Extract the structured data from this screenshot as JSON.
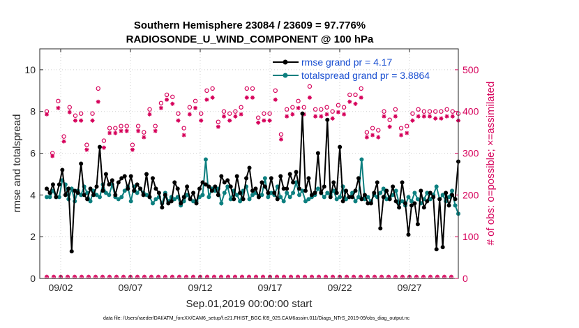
{
  "chart_data": {
    "type": "line",
    "title": "Southern Hemisphere 23084 / 23609 = 97.776%",
    "subtitle": "RADIOSONDE_U_WIND_COMPONENT @ 100 hPa",
    "xlabel": "Sep.01,2019 00:00:00 start",
    "ylabel": "rmse and totalspread",
    "ylabel_right": "# of obs: o=possible; ×=assimilated",
    "footnote": "data file: /Users/raeder/DAI/ATM_forcXX/CAM6_setup/f.e21.FHIST_BGC.f09_025.CAM6assim.011/Diags_NTrS_2019-09/obs_diag_output.nc",
    "xlim": [
      0.5,
      30.5
    ],
    "ylim": [
      0,
      11
    ],
    "ylim_right": [
      0,
      550
    ],
    "x_ticks": [
      2,
      7,
      12,
      17,
      22,
      27
    ],
    "x_tick_labels": [
      "09/02",
      "09/07",
      "09/12",
      "09/17",
      "09/22",
      "09/27"
    ],
    "y_ticks": [
      0,
      2,
      4,
      6,
      8,
      10
    ],
    "y_tick_labels": [
      "0",
      "2",
      "4",
      "6",
      "8",
      "10"
    ],
    "y_ticks_right": [
      0,
      100,
      200,
      300,
      400,
      500
    ],
    "y_tick_labels_right": [
      "0",
      "100",
      "200",
      "300",
      "400",
      "500"
    ],
    "legend_position": "top-right",
    "colors": {
      "rmse": "#000000",
      "spread": "#0c7f7f",
      "obs": "#d6005a",
      "legend_text": "#1a4fd1"
    },
    "series": [
      {
        "name": "rmse grand pr = 4.17",
        "color": "#000000",
        "values": [
          4.3,
          4.1,
          4.5,
          3.9,
          4.5,
          5.2,
          4.0,
          4.3,
          1.3,
          4.2,
          4.1,
          5.5,
          4.0,
          3.8,
          4.3,
          4.0,
          4.4,
          6.3,
          4.2,
          5.0,
          4.5,
          4.7,
          4.0,
          4.6,
          4.8,
          4.9,
          4.3,
          4.9,
          4.2,
          4.5,
          4.3,
          4.0,
          5.0,
          3.9,
          4.8,
          4.3,
          4.1,
          3.4,
          4.0,
          3.6,
          3.7,
          4.6,
          4.3,
          3.6,
          3.9,
          4.4,
          3.8,
          4.1,
          3.6,
          4.3,
          4.6,
          4.5,
          4.4,
          4.2,
          4.4,
          4.0,
          4.9,
          4.6,
          4.7,
          4.4,
          3.8,
          4.9,
          4.1,
          3.8,
          4.8,
          5.3,
          4.2,
          4.3,
          3.9,
          4.6,
          4.4,
          4.1,
          4.8,
          4.1,
          3.8,
          4.9,
          4.3,
          4.3,
          5.0,
          4.6,
          5.1,
          4.3,
          7.9,
          4.2,
          4.8,
          4.0,
          4.1,
          6.0,
          4.1,
          4.4,
          7.6,
          3.9,
          4.6,
          4.1,
          6.3,
          3.7,
          4.2,
          3.9,
          3.9,
          4.2,
          4.8,
          3.8,
          4.0,
          3.6,
          3.6,
          4.1,
          4.6,
          2.4,
          3.9,
          4.2,
          3.8,
          4.4,
          3.7,
          3.4,
          4.6,
          3.6,
          2.1,
          3.5,
          3.6,
          2.6,
          4.2,
          3.4,
          3.7,
          4.1,
          3.9,
          1.4,
          3.8,
          1.5,
          4.1,
          3.5,
          4.0,
          3.8,
          5.6
        ],
        "x_start": 1.0,
        "x_step": 0.225
      },
      {
        "name": "totalspread grand pr = 3.8864",
        "color": "#0c7f7f",
        "values": [
          3.9,
          3.9,
          4.2,
          3.9,
          3.9,
          4.7,
          4.5,
          3.8,
          4.3,
          3.7,
          4.2,
          4.0,
          4.4,
          4.1,
          3.7,
          4.2,
          4.0,
          3.9,
          4.5,
          4.1,
          4.0,
          4.5,
          3.9,
          3.8,
          3.9,
          4.2,
          4.4,
          3.7,
          4.4,
          4.1,
          4.3,
          4.1,
          4.0,
          3.9,
          3.6,
          3.8,
          3.9,
          3.6,
          4.1,
          3.7,
          3.9,
          3.8,
          3.9,
          3.5,
          3.7,
          4.0,
          3.8,
          3.7,
          3.7,
          3.9,
          4.0,
          5.7,
          3.9,
          4.3,
          4.2,
          4.3,
          3.6,
          4.1,
          4.4,
          3.8,
          4.2,
          4.0,
          3.7,
          4.2,
          4.4,
          3.8,
          4.0,
          4.1,
          3.9,
          4.0,
          4.8,
          3.9,
          4.1,
          4.0,
          4.4,
          3.9,
          3.7,
          4.1,
          3.9,
          4.1,
          4.6,
          4.0,
          4.2,
          3.7,
          3.8,
          3.9,
          4.0,
          4.3,
          4.1,
          3.9,
          4.1,
          4.0,
          4.2,
          3.8,
          3.9,
          4.4,
          3.8,
          3.9,
          4.1,
          3.7,
          3.9,
          5.7,
          3.8,
          3.9,
          3.7,
          4.0,
          3.9,
          4.1,
          4.3,
          3.8,
          3.9,
          4.0,
          4.2,
          3.6,
          3.7,
          3.5,
          3.9,
          3.7,
          4.1,
          3.8,
          3.6,
          3.8,
          4.1,
          3.8,
          4.0,
          4.4,
          3.8,
          4.0,
          3.7,
          3.9,
          4.2,
          3.5,
          3.1
        ]
      },
      {
        "name": "obs possible (o)",
        "color": "#d6005a",
        "values": [
          400,
          300,
          425,
          340,
          410,
          390,
          395,
          320,
          395,
          455,
          330,
          360,
          360,
          365,
          365,
          320,
          365,
          350,
          405,
          365,
          420,
          440,
          435,
          395,
          360,
          410,
          425,
          395,
          450,
          455,
          375,
          400,
          395,
          400,
          410,
          455,
          455,
          385,
          395,
          395,
          450,
          345,
          405,
          410,
          425,
          410,
          460,
          405,
          405,
          410,
          400,
          415,
          410,
          440,
          440,
          455,
          350,
          360,
          355,
          400,
          380,
          405,
          360,
          365,
          395,
          405,
          400,
          400,
          400,
          400,
          405,
          400,
          395
        ]
      },
      {
        "name": "obs assimilated (×)",
        "color": "#d6005a",
        "values": [
          400,
          300,
          415,
          335,
          405,
          385,
          385,
          315,
          385,
          430,
          320,
          355,
          355,
          360,
          360,
          315,
          360,
          345,
          400,
          360,
          415,
          435,
          425,
          385,
          350,
          400,
          415,
          385,
          435,
          440,
          370,
          395,
          385,
          395,
          400,
          440,
          440,
          380,
          385,
          385,
          435,
          340,
          395,
          400,
          415,
          400,
          440,
          395,
          395,
          400,
          390,
          405,
          400,
          430,
          425,
          440,
          345,
          350,
          345,
          395,
          370,
          395,
          350,
          355,
          385,
          395,
          395,
          395,
          390,
          390,
          395,
          395,
          385
        ]
      }
    ]
  }
}
